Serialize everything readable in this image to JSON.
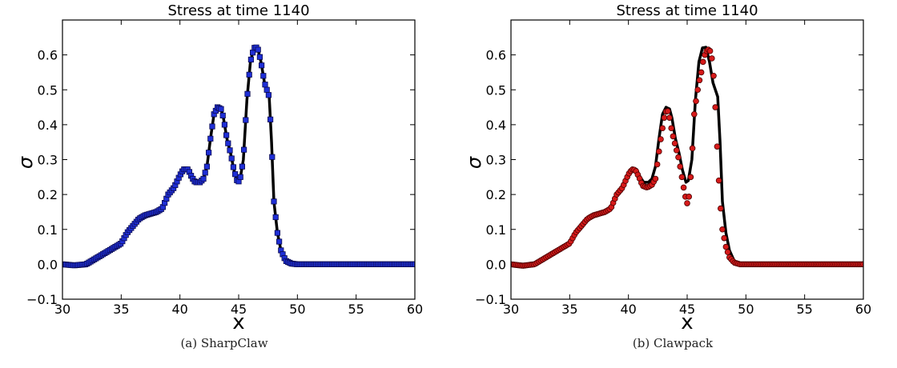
{
  "charts": [
    {
      "caption": "(a) SharpClaw",
      "chart_data": {
        "type": "line+scatter",
        "title": "Stress at time 1140",
        "xlabel": "x",
        "ylabel": "σ",
        "xlim": [
          30,
          60
        ],
        "ylim": [
          -0.1,
          0.7
        ],
        "xticks": [
          30,
          35,
          40,
          45,
          50,
          55,
          60
        ],
        "yticks": [
          -0.1,
          0.0,
          0.1,
          0.2,
          0.3,
          0.4,
          0.5,
          0.6
        ],
        "ytick_labels": [
          "−0.1",
          "0.0",
          "0.1",
          "0.2",
          "0.3",
          "0.4",
          "0.5",
          "0.6"
        ],
        "grid": false,
        "series": [
          {
            "kind": "line",
            "color": "#000000",
            "points": [
              [
                30.0,
                0.0
              ],
              [
                31.0,
                -0.003
              ],
              [
                32.0,
                0.0
              ],
              [
                32.5,
                0.01
              ],
              [
                33.0,
                0.02
              ],
              [
                34.0,
                0.04
              ],
              [
                35.0,
                0.06
              ],
              [
                35.5,
                0.09
              ],
              [
                36.0,
                0.11
              ],
              [
                36.5,
                0.13
              ],
              [
                37.0,
                0.14
              ],
              [
                37.5,
                0.145
              ],
              [
                38.0,
                0.15
              ],
              [
                38.5,
                0.16
              ],
              [
                39.0,
                0.2
              ],
              [
                39.5,
                0.22
              ],
              [
                40.0,
                0.255
              ],
              [
                40.3,
                0.272
              ],
              [
                40.7,
                0.272
              ],
              [
                41.0,
                0.25
              ],
              [
                41.3,
                0.235
              ],
              [
                41.7,
                0.235
              ],
              [
                42.0,
                0.245
              ],
              [
                42.3,
                0.28
              ],
              [
                42.6,
                0.36
              ],
              [
                42.9,
                0.43
              ],
              [
                43.2,
                0.45
              ],
              [
                43.5,
                0.445
              ],
              [
                43.7,
                0.42
              ],
              [
                44.0,
                0.36
              ],
              [
                44.3,
                0.32
              ],
              [
                44.6,
                0.27
              ],
              [
                44.9,
                0.235
              ],
              [
                45.1,
                0.24
              ],
              [
                45.4,
                0.3
              ],
              [
                45.7,
                0.47
              ],
              [
                46.0,
                0.58
              ],
              [
                46.3,
                0.62
              ],
              [
                46.6,
                0.622
              ],
              [
                46.9,
                0.58
              ],
              [
                47.2,
                0.52
              ],
              [
                47.6,
                0.48
              ],
              [
                47.8,
                0.35
              ],
              [
                48.0,
                0.18
              ],
              [
                48.3,
                0.09
              ],
              [
                48.6,
                0.04
              ],
              [
                49.0,
                0.01
              ],
              [
                49.5,
                0.002
              ],
              [
                50.0,
                0.0
              ],
              [
                60.0,
                0.0
              ]
            ]
          },
          {
            "kind": "markers",
            "marker": "square",
            "color": "#1f2fd6",
            "edge_color": "#0a0a50",
            "note_sampling": "same curve sampled every 0.15 in x",
            "points": [
              [
                30.0,
                0.0
              ],
              [
                31.0,
                -0.003
              ],
              [
                32.0,
                0.0
              ],
              [
                32.5,
                0.01
              ],
              [
                33.0,
                0.02
              ],
              [
                34.0,
                0.04
              ],
              [
                35.0,
                0.06
              ],
              [
                35.5,
                0.09
              ],
              [
                36.0,
                0.11
              ],
              [
                36.5,
                0.13
              ],
              [
                37.0,
                0.14
              ],
              [
                37.5,
                0.145
              ],
              [
                38.0,
                0.15
              ],
              [
                38.5,
                0.16
              ],
              [
                39.0,
                0.2
              ],
              [
                39.5,
                0.22
              ],
              [
                40.0,
                0.255
              ],
              [
                40.3,
                0.272
              ],
              [
                40.7,
                0.272
              ],
              [
                41.0,
                0.25
              ],
              [
                41.3,
                0.235
              ],
              [
                41.7,
                0.235
              ],
              [
                42.0,
                0.245
              ],
              [
                42.3,
                0.28
              ],
              [
                42.6,
                0.36
              ],
              [
                42.9,
                0.43
              ],
              [
                43.2,
                0.45
              ],
              [
                43.5,
                0.445
              ],
              [
                43.7,
                0.42
              ],
              [
                44.0,
                0.36
              ],
              [
                44.3,
                0.32
              ],
              [
                44.6,
                0.27
              ],
              [
                44.9,
                0.235
              ],
              [
                45.1,
                0.24
              ],
              [
                45.4,
                0.3
              ],
              [
                45.7,
                0.47
              ],
              [
                46.0,
                0.58
              ],
              [
                46.3,
                0.62
              ],
              [
                46.6,
                0.622
              ],
              [
                46.9,
                0.58
              ],
              [
                47.2,
                0.52
              ],
              [
                47.6,
                0.48
              ],
              [
                47.8,
                0.35
              ],
              [
                48.0,
                0.18
              ],
              [
                48.3,
                0.09
              ],
              [
                48.6,
                0.04
              ],
              [
                49.0,
                0.01
              ],
              [
                49.5,
                0.002
              ],
              [
                50.0,
                0.0
              ],
              [
                60.0,
                0.0
              ]
            ]
          }
        ]
      }
    },
    {
      "caption": "(b) Clawpack",
      "chart_data": {
        "type": "line+scatter",
        "title": "Stress at time 1140",
        "xlabel": "x",
        "ylabel": "σ",
        "xlim": [
          30,
          60
        ],
        "ylim": [
          -0.1,
          0.7
        ],
        "xticks": [
          30,
          35,
          40,
          45,
          50,
          55,
          60
        ],
        "yticks": [
          -0.1,
          0.0,
          0.1,
          0.2,
          0.3,
          0.4,
          0.5,
          0.6
        ],
        "ytick_labels": [
          "−0.1",
          "0.0",
          "0.1",
          "0.2",
          "0.3",
          "0.4",
          "0.5",
          "0.6"
        ],
        "grid": false,
        "series": [
          {
            "kind": "line",
            "color": "#000000",
            "points": [
              [
                30.0,
                0.0
              ],
              [
                31.0,
                -0.003
              ],
              [
                32.0,
                0.0
              ],
              [
                32.5,
                0.01
              ],
              [
                33.0,
                0.02
              ],
              [
                34.0,
                0.04
              ],
              [
                35.0,
                0.06
              ],
              [
                35.5,
                0.09
              ],
              [
                36.0,
                0.11
              ],
              [
                36.5,
                0.13
              ],
              [
                37.0,
                0.14
              ],
              [
                37.5,
                0.145
              ],
              [
                38.0,
                0.15
              ],
              [
                38.5,
                0.16
              ],
              [
                39.0,
                0.2
              ],
              [
                39.5,
                0.22
              ],
              [
                40.0,
                0.255
              ],
              [
                40.3,
                0.272
              ],
              [
                40.7,
                0.272
              ],
              [
                41.0,
                0.25
              ],
              [
                41.3,
                0.235
              ],
              [
                41.7,
                0.235
              ],
              [
                42.0,
                0.245
              ],
              [
                42.3,
                0.28
              ],
              [
                42.6,
                0.36
              ],
              [
                42.9,
                0.43
              ],
              [
                43.2,
                0.45
              ],
              [
                43.5,
                0.445
              ],
              [
                43.7,
                0.42
              ],
              [
                44.0,
                0.36
              ],
              [
                44.3,
                0.32
              ],
              [
                44.6,
                0.27
              ],
              [
                44.9,
                0.235
              ],
              [
                45.1,
                0.24
              ],
              [
                45.4,
                0.3
              ],
              [
                45.7,
                0.47
              ],
              [
                46.0,
                0.58
              ],
              [
                46.3,
                0.62
              ],
              [
                46.6,
                0.622
              ],
              [
                46.9,
                0.58
              ],
              [
                47.2,
                0.52
              ],
              [
                47.6,
                0.48
              ],
              [
                47.8,
                0.35
              ],
              [
                48.0,
                0.18
              ],
              [
                48.3,
                0.09
              ],
              [
                48.6,
                0.04
              ],
              [
                49.0,
                0.01
              ],
              [
                49.5,
                0.002
              ],
              [
                50.0,
                0.0
              ],
              [
                60.0,
                0.0
              ]
            ]
          },
          {
            "kind": "markers",
            "marker": "circle",
            "color": "#d61a1a",
            "edge_color": "#4a0000",
            "points": [
              [
                30.0,
                0.0
              ],
              [
                31.0,
                -0.004
              ],
              [
                32.0,
                0.0
              ],
              [
                32.5,
                0.01
              ],
              [
                33.0,
                0.02
              ],
              [
                34.0,
                0.04
              ],
              [
                35.0,
                0.06
              ],
              [
                35.5,
                0.09
              ],
              [
                36.0,
                0.11
              ],
              [
                36.5,
                0.13
              ],
              [
                37.0,
                0.14
              ],
              [
                37.5,
                0.145
              ],
              [
                38.0,
                0.15
              ],
              [
                38.5,
                0.16
              ],
              [
                39.0,
                0.2
              ],
              [
                39.5,
                0.22
              ],
              [
                40.0,
                0.258
              ],
              [
                40.3,
                0.272
              ],
              [
                40.6,
                0.27
              ],
              [
                40.9,
                0.25
              ],
              [
                41.2,
                0.225
              ],
              [
                41.6,
                0.22
              ],
              [
                42.0,
                0.228
              ],
              [
                42.3,
                0.245
              ],
              [
                42.5,
                0.3
              ],
              [
                42.8,
                0.37
              ],
              [
                43.1,
                0.43
              ],
              [
                43.3,
                0.445
              ],
              [
                43.5,
                0.42
              ],
              [
                43.7,
                0.38
              ],
              [
                44.0,
                0.34
              ],
              [
                44.3,
                0.3
              ],
              [
                44.6,
                0.24
              ],
              [
                44.8,
                0.2
              ],
              [
                45.0,
                0.175
              ],
              [
                45.2,
                0.2
              ],
              [
                45.4,
                0.3
              ],
              [
                45.6,
                0.43
              ],
              [
                45.8,
                0.48
              ],
              [
                46.0,
                0.52
              ],
              [
                46.2,
                0.55
              ],
              [
                46.4,
                0.59
              ],
              [
                46.6,
                0.61
              ],
              [
                46.8,
                0.615
              ],
              [
                47.0,
                0.61
              ],
              [
                47.2,
                0.57
              ],
              [
                47.4,
                0.45
              ],
              [
                47.6,
                0.3
              ],
              [
                47.8,
                0.18
              ],
              [
                48.0,
                0.1
              ],
              [
                48.3,
                0.05
              ],
              [
                48.6,
                0.02
              ],
              [
                49.0,
                0.005
              ],
              [
                49.5,
                0.0
              ],
              [
                50.0,
                0.0
              ],
              [
                60.0,
                0.0
              ]
            ]
          }
        ]
      }
    }
  ]
}
